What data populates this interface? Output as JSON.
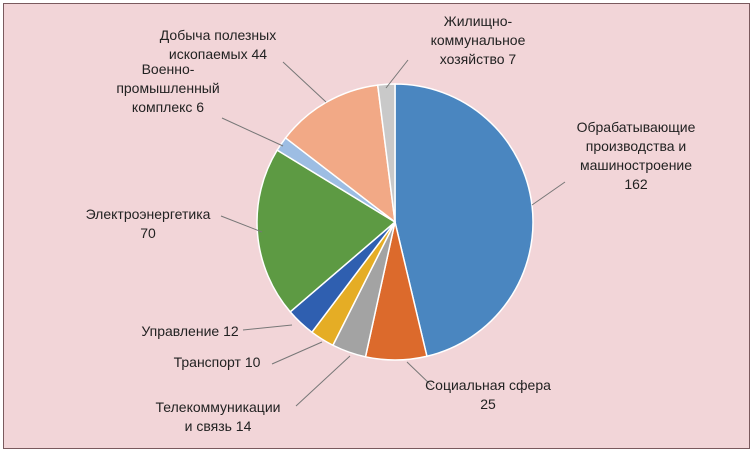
{
  "chart_data": {
    "type": "pie",
    "title": "",
    "start": "top",
    "direction": "clockwise",
    "slices": [
      {
        "label": "Обрабатывающие производства и машиностроение",
        "lines": [
          "Обрабатывающие",
          "производства и",
          "машиностроение",
          "162"
        ],
        "value": 162,
        "color": "#4a86c0"
      },
      {
        "label": "Социальная сфера",
        "lines": [
          "Социальная сфера",
          "25"
        ],
        "value": 25,
        "color": "#dc6a2c"
      },
      {
        "label": "Телекоммуникации и связь",
        "lines": [
          "Телекоммуникации",
          "и связь 14"
        ],
        "value": 14,
        "color": "#a3a3a3"
      },
      {
        "label": "Транспорт",
        "lines": [
          "Транспорт 10"
        ],
        "value": 10,
        "color": "#e5ad25"
      },
      {
        "label": "Управление",
        "lines": [
          "Управление 12"
        ],
        "value": 12,
        "color": "#2f5fb0"
      },
      {
        "label": "Электроэнергетика",
        "lines": [
          "Электроэнергетика",
          "70"
        ],
        "value": 70,
        "color": "#5d9a43"
      },
      {
        "label": "Военно-промышленный комплекс",
        "lines": [
          "Военно-",
          "промышленный",
          "комплекс 6"
        ],
        "value": 6,
        "color": "#9dbde3"
      },
      {
        "label": "Добыча полезных ископаемых",
        "lines": [
          "Добыча полезных",
          "ископаемых 44"
        ],
        "value": 44,
        "color": "#f2a986"
      },
      {
        "label": "Жилищно-коммунальное хозяйство",
        "lines": [
          "Жилищно-",
          "коммунальное",
          "хозяйство 7"
        ],
        "value": 7,
        "color": "#c9c9c9"
      }
    ]
  }
}
